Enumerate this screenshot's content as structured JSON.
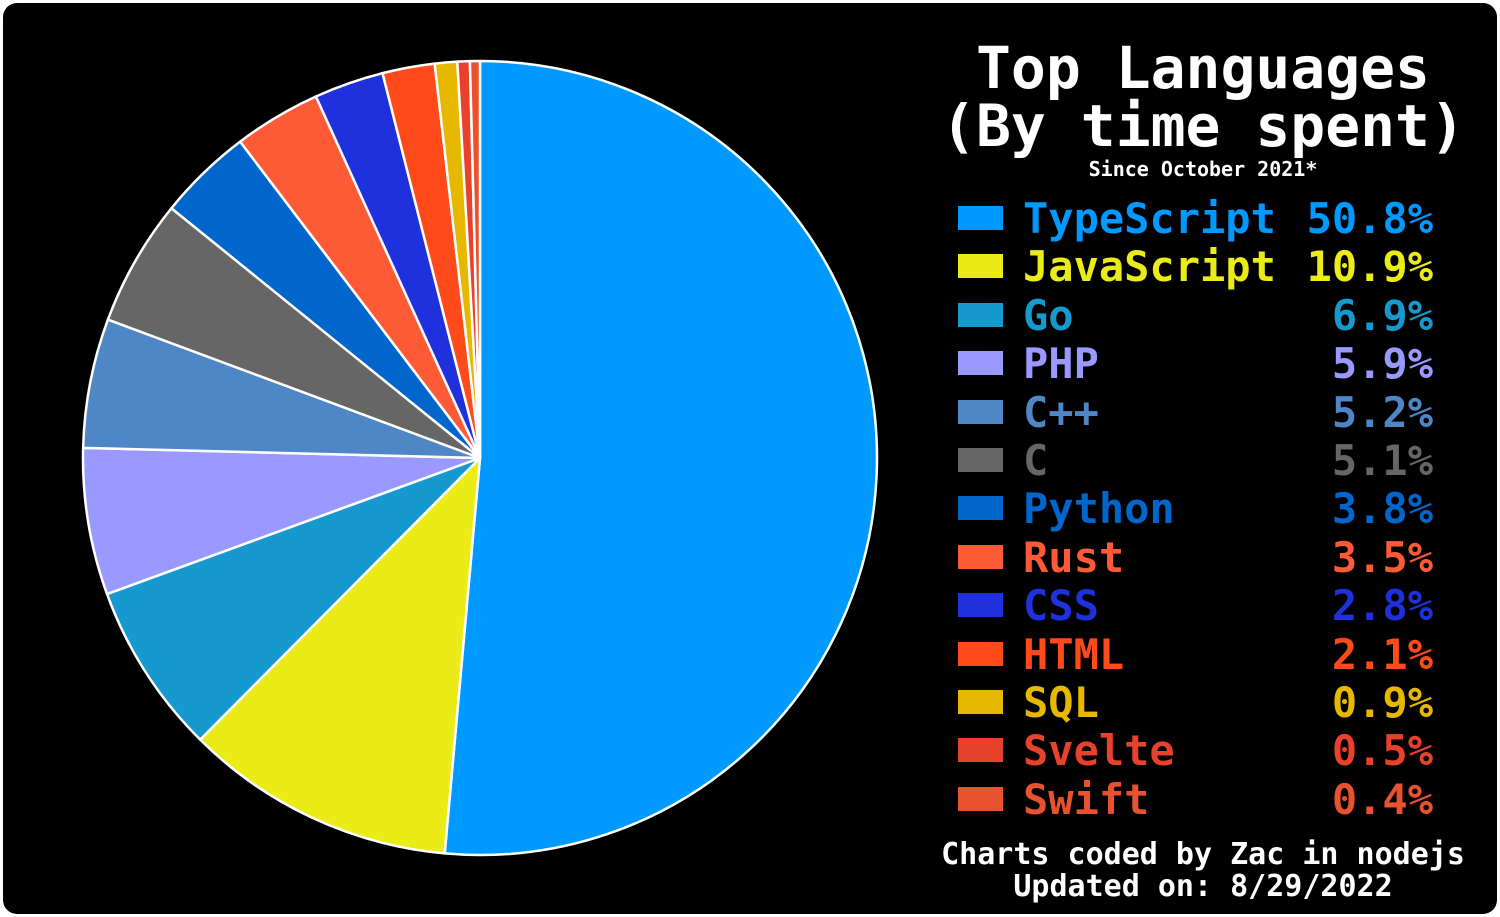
{
  "chart_data": {
    "type": "pie",
    "title": [
      "Top Languages",
      "(By time spent)"
    ],
    "subtitle": "Since October 2021*",
    "legend_position": "right",
    "slices": [
      {
        "label": "TypeScript",
        "percent_label": "50.8%",
        "value": 50.8,
        "color": "#0099ff"
      },
      {
        "label": "JavaScript",
        "percent_label": "10.9%",
        "value": 10.9,
        "color": "#ebeb17"
      },
      {
        "label": "Go",
        "percent_label": "6.9%",
        "value": 6.9,
        "color": "#1599ce"
      },
      {
        "label": "PHP",
        "percent_label": "5.9%",
        "value": 5.9,
        "color": "#9999ff"
      },
      {
        "label": "C++",
        "percent_label": "5.2%",
        "value": 5.2,
        "color": "#4f86c6"
      },
      {
        "label": "C",
        "percent_label": "5.1%",
        "value": 5.1,
        "color": "#666666"
      },
      {
        "label": "Python",
        "percent_label": "3.8%",
        "value": 3.8,
        "color": "#0066cc"
      },
      {
        "label": "Rust",
        "percent_label": "3.5%",
        "value": 3.5,
        "color": "#ff5a36"
      },
      {
        "label": "CSS",
        "percent_label": "2.8%",
        "value": 2.8,
        "color": "#1f31dd"
      },
      {
        "label": "HTML",
        "percent_label": "2.1%",
        "value": 2.1,
        "color": "#ff4a1a"
      },
      {
        "label": "SQL",
        "percent_label": "0.9%",
        "value": 0.9,
        "color": "#e6b800"
      },
      {
        "label": "Svelte",
        "percent_label": "0.5%",
        "value": 0.5,
        "color": "#e8412c"
      },
      {
        "label": "Swift",
        "percent_label": "0.4%",
        "value": 0.4,
        "color": "#e8522e"
      }
    ],
    "footer": [
      "Charts coded by Zac in nodejs",
      "Updated on: 8/29/2022"
    ]
  },
  "colors": {
    "background": "#000000",
    "slice_border": "#ffffff",
    "text": "#ffffff"
  }
}
